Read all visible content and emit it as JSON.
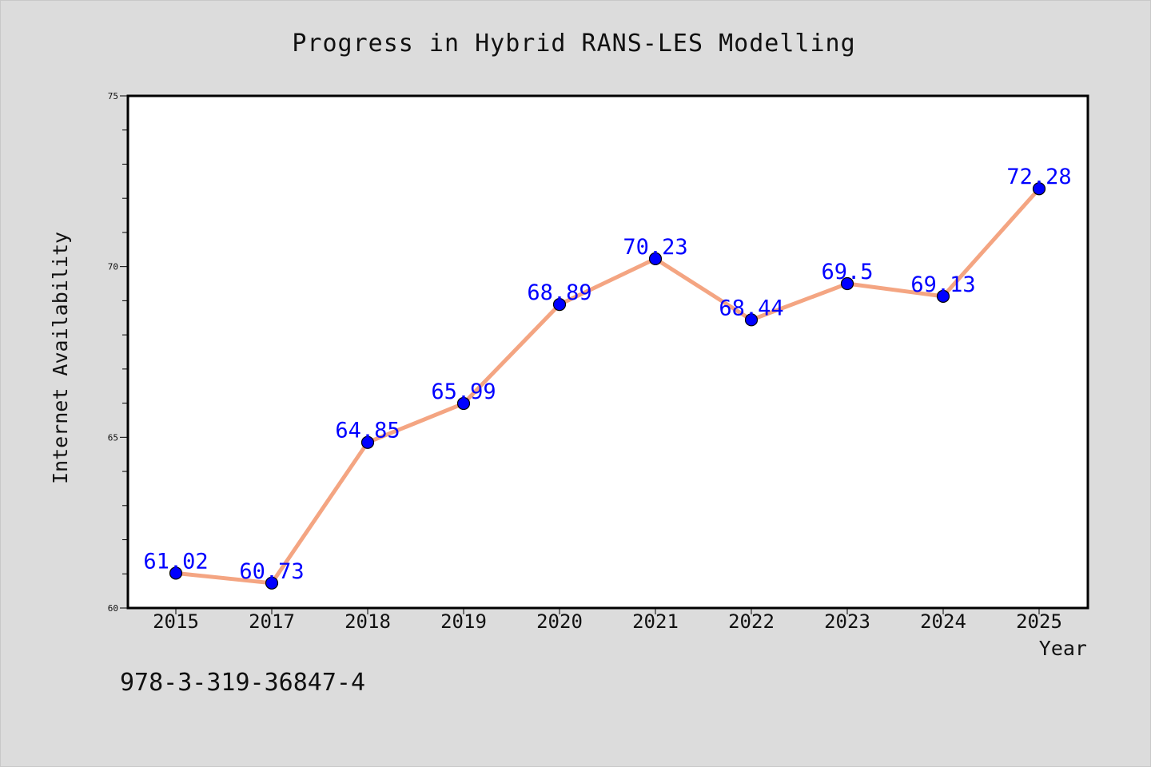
{
  "chart_data": {
    "type": "line",
    "title": "Progress in Hybrid RANS-LES Modelling",
    "xlabel": "Year",
    "ylabel": "Internet Availability",
    "categories": [
      "2015",
      "2017",
      "2018",
      "2019",
      "2020",
      "2021",
      "2022",
      "2023",
      "2024",
      "2025"
    ],
    "series": [
      {
        "values": [
          61.02,
          60.73,
          64.85,
          65.99,
          68.89,
          70.23,
          68.44,
          69.5,
          69.13,
          72.28
        ],
        "labels": [
          "61.02",
          "60.73",
          "64.85",
          "65.99",
          "68.89",
          "70.23",
          "68.44",
          "69.5",
          "69.13",
          "72.28"
        ],
        "line_color": "#f4a582",
        "marker_color": "#0000ff",
        "label_color": "#0000ff"
      }
    ],
    "ylim": [
      60,
      75
    ],
    "yticks": [
      60,
      65,
      70,
      75
    ],
    "ytick_labels": [
      "60",
      "65",
      "70",
      "75"
    ],
    "grid": false,
    "legend": "none"
  },
  "footnote": "978-3-319-36847-4",
  "colors": {
    "background": "#dcdcdc",
    "plot_area": "#ffffff",
    "axes": "#000000"
  }
}
